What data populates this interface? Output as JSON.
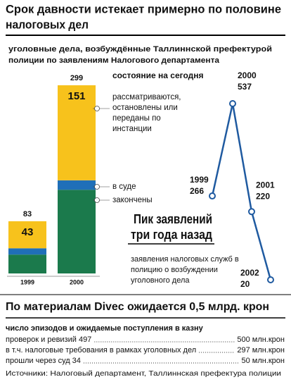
{
  "title_lines": [
    "Срок давности истекает примерно по половине",
    "налоговых дел"
  ],
  "subtitle_lines": [
    "уголовные дела, возбуждённые Таллиннской префектурой",
    "полиции по заявлениям Налогового департамента"
  ],
  "chart_data": [
    {
      "type": "stacked_bar",
      "title": "состояние на сегодня",
      "categories": [
        "1999",
        "2000"
      ],
      "series": [
        {
          "name": [
            "закончены"
          ],
          "color": "#1b7a4c",
          "values": [
            30,
            133
          ]
        },
        {
          "name": [
            "в суде"
          ],
          "color": "#1f6fb8",
          "values": [
            10,
            15
          ]
        },
        {
          "name": [
            "рассматриваются,",
            "остановлены или",
            "переданы по",
            "инстанции"
          ],
          "color": "#f7c21c",
          "values": [
            43,
            151
          ]
        }
      ],
      "total_labels": [
        83,
        299
      ]
    },
    {
      "type": "line",
      "title_lines": [
        "Пик заявлений",
        "три года назад"
      ],
      "note_lines": [
        "заявления налоговых служб в",
        "полицию о возбуждении",
        "уголовного дела"
      ],
      "categories": [
        "1999",
        "2000",
        "2001",
        "2002"
      ],
      "series": [
        {
          "name": "заявления",
          "color": "#1f5aa0",
          "values": [
            266,
            537,
            220,
            20
          ]
        }
      ]
    }
  ],
  "section": {
    "title": "По материалам Divec ожидается 0,5 млрд. крон",
    "subtitle": "число эпизодов и ожидаемые поступления в казну",
    "rows": [
      [
        "проверок и ревизий 497",
        "500 млн.крон"
      ],
      [
        "в т.ч. налоговые требования в рамках уголовных дел",
        "297 млн.крон"
      ],
      [
        "прошли через суд 34",
        "50 млн.крон"
      ]
    ],
    "source": "Источники: Налоговый департамент, Таллиннская префектура полиции"
  }
}
